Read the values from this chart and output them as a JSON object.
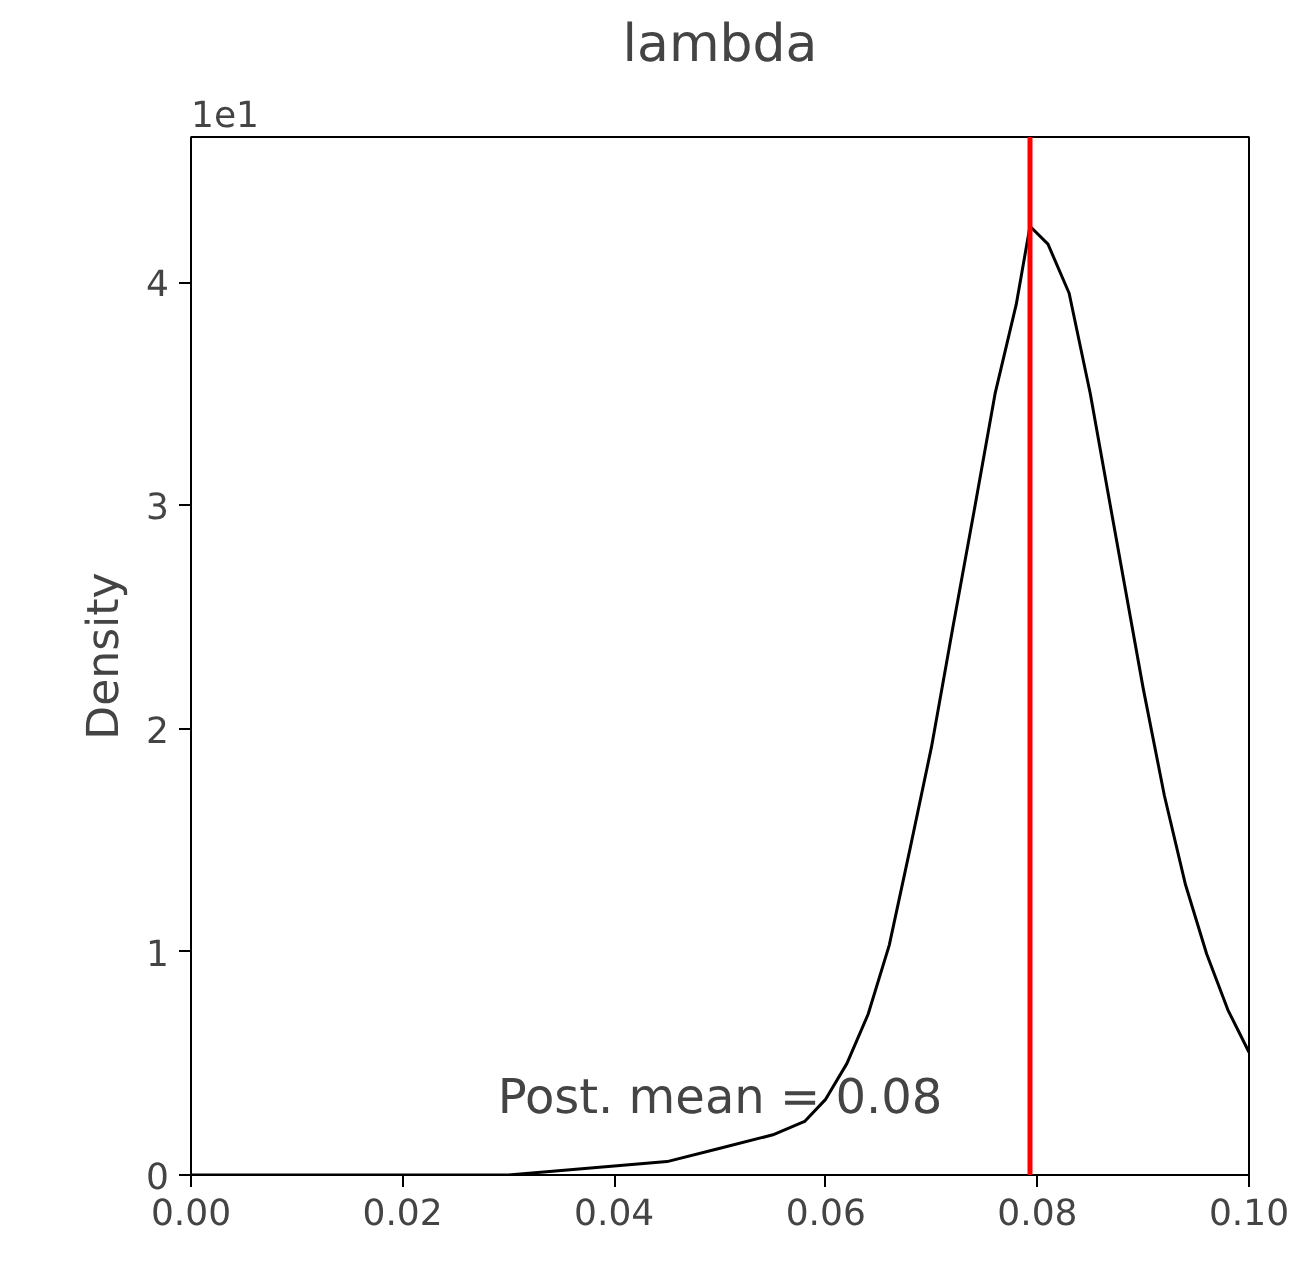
{
  "chart_data": {
    "type": "line",
    "title": "lambda",
    "ylabel": "Density",
    "x": [
      0,
      0.01,
      0.02,
      0.03,
      0.035,
      0.04,
      0.045,
      0.05,
      0.055,
      0.058,
      0.06,
      0.062,
      0.064,
      0.066,
      0.068,
      0.07,
      0.072,
      0.074,
      0.076,
      0.078,
      0.0793,
      0.081,
      0.083,
      0.085,
      0.087,
      0.09,
      0.092,
      0.094,
      0.096,
      0.098,
      0.1
    ],
    "series": [
      {
        "color": "#000000",
        "values": [
          0,
          0,
          0,
          0,
          0.02,
          0.04,
          0.06,
          0.12,
          0.18,
          0.24,
          0.34,
          0.5,
          0.72,
          1.03,
          1.47,
          1.92,
          2.45,
          2.97,
          3.5,
          3.9,
          4.25,
          4.17,
          3.95,
          3.5,
          2.97,
          2.18,
          1.7,
          1.3,
          0.99,
          0.74,
          0.55
        ]
      }
    ],
    "xlim": [
      0,
      0.1
    ],
    "ylim": [
      0,
      4.65
    ],
    "xticks": [
      {
        "value": 0,
        "label": "0.00"
      },
      {
        "value": 0.02,
        "label": "0.02"
      },
      {
        "value": 0.04,
        "label": "0.04"
      },
      {
        "value": 0.06,
        "label": "0.06"
      },
      {
        "value": 0.08,
        "label": "0.08"
      },
      {
        "value": 0.1,
        "label": "0.10"
      }
    ],
    "yticks": [
      0,
      1,
      2,
      3,
      4
    ],
    "ref_lines": [
      {
        "axis": "x",
        "value": 0.0793,
        "color": "#ff0000"
      }
    ],
    "annotations": [
      "1e1",
      "Post. mean = 0.08"
    ],
    "grid": false,
    "marker": "none",
    "line_style": "solid"
  }
}
